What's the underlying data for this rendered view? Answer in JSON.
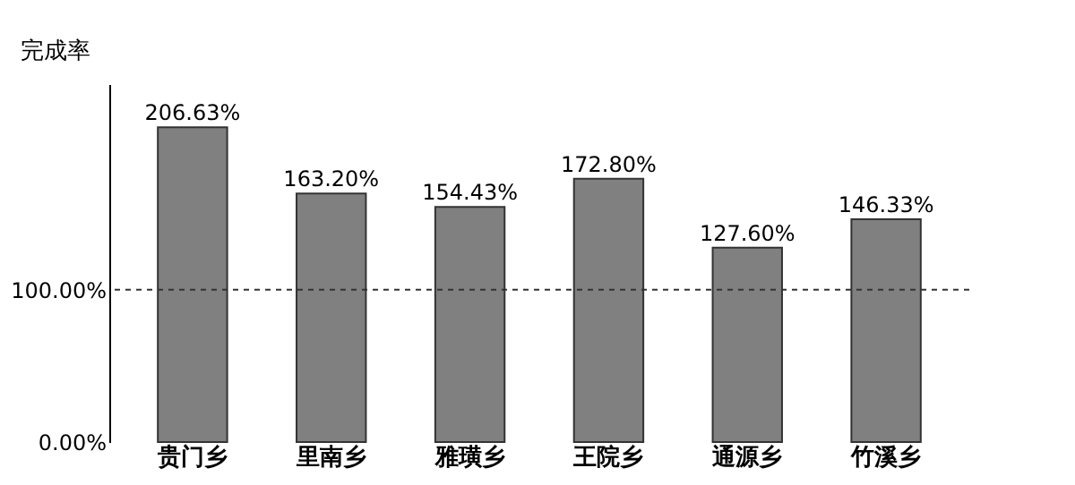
{
  "chart_data": {
    "type": "bar",
    "ylabel": "完成率",
    "categories": [
      "贵门乡",
      "里南乡",
      "雅璜乡",
      "王院乡",
      "通源乡",
      "竹溪乡"
    ],
    "values": [
      206.63,
      163.2,
      154.43,
      172.8,
      127.6,
      146.33
    ],
    "value_labels": [
      "206.63%",
      "163.20%",
      "154.43%",
      "172.80%",
      "127.60%",
      "146.33%"
    ],
    "color": "#808080",
    "ylim": [
      0,
      235
    ],
    "yticks": [
      {
        "value": 0,
        "label": "0.00%"
      },
      {
        "value": 100,
        "label": "100.00%"
      }
    ],
    "ref_lines": [
      {
        "axis": "y",
        "value": 100,
        "line_style": "dashed",
        "color": "#333333"
      }
    ],
    "grid": false
  }
}
